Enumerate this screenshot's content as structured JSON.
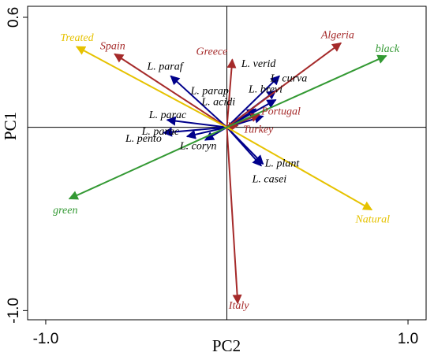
{
  "chart_data": {
    "type": "scatter",
    "subtype": "biplot",
    "xlabel": "PC2",
    "ylabel": "PC1",
    "xlim": [
      -1.1,
      1.1
    ],
    "ylim": [
      -1.05,
      0.66
    ],
    "x_ticks": [
      {
        "value": -1.0,
        "label": "-1.0"
      },
      {
        "value": 1.0,
        "label": "1.0"
      }
    ],
    "y_ticks": [
      {
        "value": 0.6,
        "label": "0.6"
      },
      {
        "value": -1.0,
        "label": "-1.0"
      }
    ],
    "reference_lines": {
      "x": 0,
      "y": 0
    },
    "colors": {
      "bacteria": "#00008b",
      "country": "#a52a2a",
      "treatment": "#e6c200",
      "olive_color": "#339933"
    },
    "series": [
      {
        "group": "bacteria",
        "color": "#00008b",
        "vectors": [
          {
            "label": "L. paraf",
            "x": -0.31,
            "y": 0.28,
            "lx": -0.44,
            "ly": 0.315
          },
          {
            "label": "L. parap",
            "x": 0.16,
            "y": 0.1,
            "lx": -0.2,
            "ly": 0.18
          },
          {
            "label": "L. acidi",
            "x": 0.2,
            "y": 0.06,
            "lx": -0.14,
            "ly": 0.12
          },
          {
            "label": "L. verid",
            "x": 0.29,
            "y": 0.28,
            "lx": 0.08,
            "ly": 0.33
          },
          {
            "label": "L. curva",
            "x": 0.27,
            "y": 0.2,
            "lx": 0.24,
            "ly": 0.25
          },
          {
            "label": "L. brevi",
            "x": 0.27,
            "y": 0.15,
            "lx": 0.12,
            "ly": 0.19
          },
          {
            "label": "L. parac",
            "x": -0.33,
            "y": 0.04,
            "lx": -0.43,
            "ly": 0.05
          },
          {
            "label": "L. parac",
            "x": -0.35,
            "y": -0.03,
            "lx": -0.47,
            "ly": -0.04
          },
          {
            "label": "L. pento",
            "x": -0.22,
            "y": -0.05,
            "lx": -0.56,
            "ly": -0.08
          },
          {
            "label": "L. coryn",
            "x": -0.12,
            "y": -0.07,
            "lx": -0.26,
            "ly": -0.12
          },
          {
            "label": "L. plant",
            "x": 0.19,
            "y": -0.21,
            "lx": 0.21,
            "ly": -0.215
          },
          {
            "label": "L. casei",
            "x": 0.2,
            "y": -0.2,
            "lx": 0.14,
            "ly": -0.3
          }
        ]
      },
      {
        "group": "country",
        "color": "#a52a2a",
        "vectors": [
          {
            "label": "Algeria",
            "x": 0.63,
            "y": 0.46,
            "lx": 0.52,
            "ly": 0.485
          },
          {
            "label": "Greece",
            "x": 0.03,
            "y": 0.37,
            "lx": -0.17,
            "ly": 0.395
          },
          {
            "label": "Spain",
            "x": -0.62,
            "y": 0.4,
            "lx": -0.7,
            "ly": 0.425
          },
          {
            "label": "Portugal",
            "x": 0.18,
            "y": 0.07,
            "lx": 0.19,
            "ly": 0.07
          },
          {
            "label": "Turkey",
            "x": 0.06,
            "y": 0.01,
            "lx": 0.09,
            "ly": -0.03
          },
          {
            "label": "Italy",
            "x": 0.06,
            "y": -0.96,
            "lx": 0.01,
            "ly": -0.99
          }
        ]
      },
      {
        "group": "treatment",
        "color": "#e6c200",
        "vectors": [
          {
            "label": "Treated",
            "x": -0.83,
            "y": 0.44,
            "lx": -0.92,
            "ly": 0.47
          },
          {
            "label": "Natural",
            "x": 0.8,
            "y": -0.45,
            "lx": 0.71,
            "ly": -0.52
          }
        ]
      },
      {
        "group": "olive_color",
        "color": "#339933",
        "vectors": [
          {
            "label": "black",
            "x": 0.88,
            "y": 0.39,
            "lx": 0.82,
            "ly": 0.41
          },
          {
            "label": "green",
            "x": -0.87,
            "y": -0.39,
            "lx": -0.96,
            "ly": -0.47
          }
        ]
      }
    ]
  }
}
